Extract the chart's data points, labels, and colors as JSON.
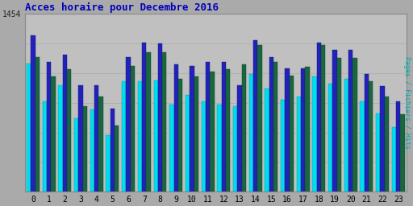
{
  "title": "Acces horaire pour Decembre 2016",
  "right_label": "Pages / Fichiers / Hits",
  "hours": [
    0,
    1,
    2,
    3,
    4,
    5,
    6,
    7,
    8,
    9,
    10,
    11,
    12,
    13,
    14,
    15,
    16,
    17,
    18,
    19,
    20,
    21,
    22,
    23
  ],
  "hits": [
    1050,
    740,
    870,
    600,
    670,
    460,
    900,
    900,
    910,
    710,
    790,
    740,
    710,
    700,
    960,
    840,
    750,
    780,
    940,
    880,
    920,
    740,
    640,
    530
  ],
  "fichiers": [
    1280,
    1060,
    1120,
    870,
    870,
    680,
    1100,
    1220,
    1210,
    1040,
    1030,
    1060,
    1060,
    870,
    1240,
    1100,
    1010,
    1010,
    1220,
    1160,
    1160,
    960,
    860,
    740
  ],
  "pages": [
    1100,
    940,
    1000,
    700,
    780,
    540,
    1030,
    1140,
    1140,
    920,
    940,
    980,
    1000,
    1040,
    1200,
    1060,
    950,
    1020,
    1200,
    1090,
    1090,
    900,
    780,
    630
  ],
  "ymax": 1454,
  "ytick_label": "1454",
  "bar_width": 0.27,
  "color_hits": "#00DDEE",
  "color_fichiers": "#2222BB",
  "color_pages": "#1A6640",
  "fig_bg": "#AAAAAA",
  "plot_bg": "#C0C0C0",
  "title_color": "#0000BB",
  "right_label_color": "#00AAAA",
  "grid_color": "#AAAAAA"
}
